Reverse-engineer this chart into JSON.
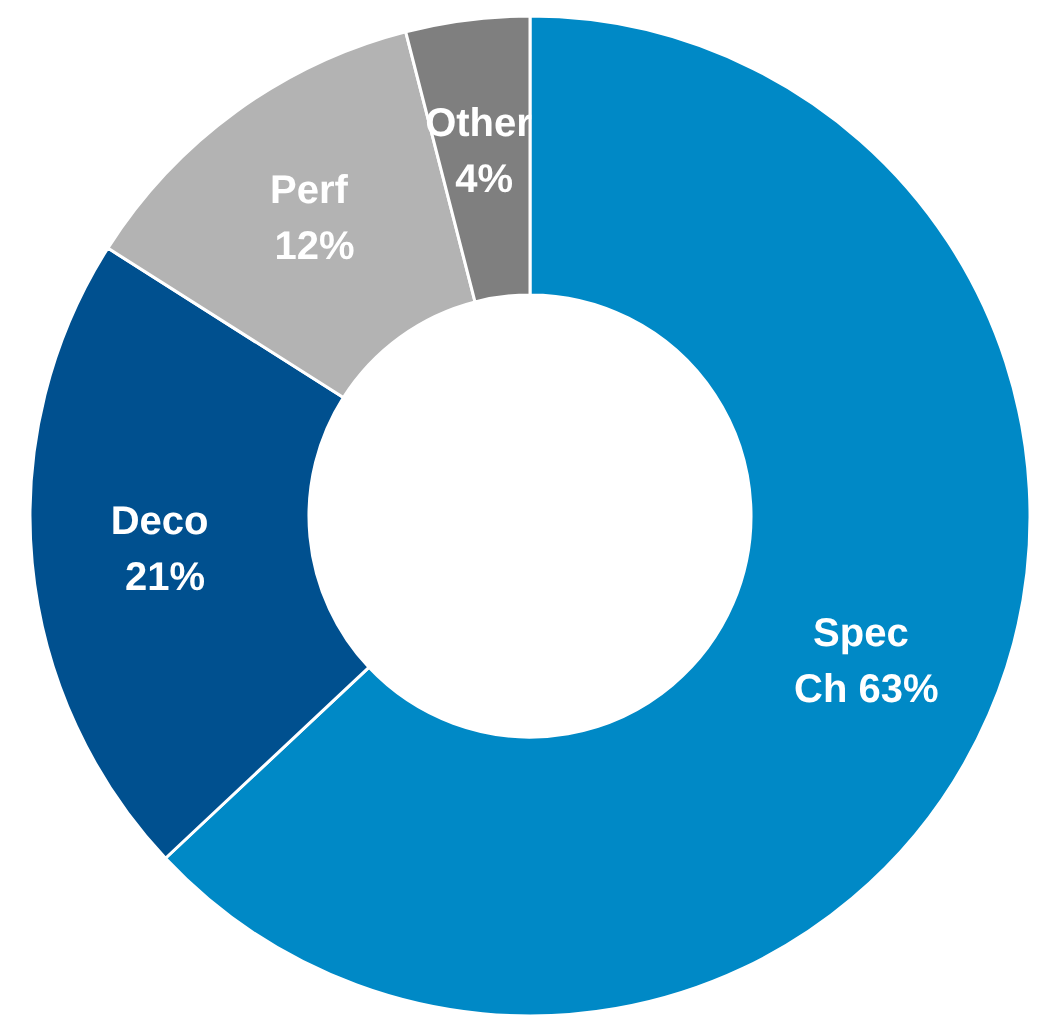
{
  "chart_data": {
    "type": "donut",
    "categories": [
      "Spec Ch",
      "Deco",
      "Perf",
      "Other"
    ],
    "values": [
      63,
      21,
      12,
      4
    ],
    "colors": [
      "#0089c6",
      "#00508f",
      "#b3b3b3",
      "#7f7f7f"
    ],
    "value_labels": [
      "63%",
      "21%",
      "12%",
      "4%"
    ],
    "legend": false
  }
}
